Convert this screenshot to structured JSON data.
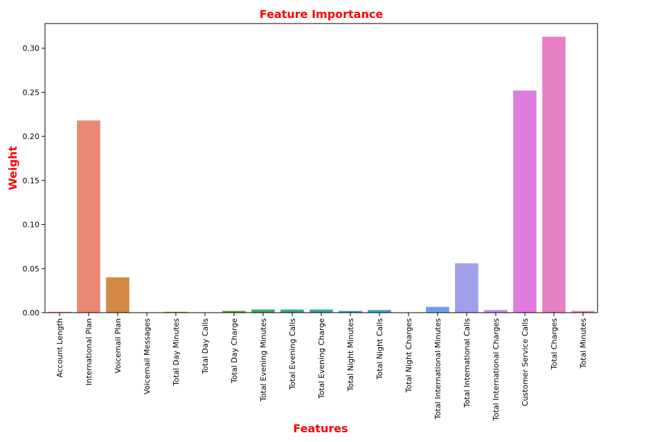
{
  "chart_data": {
    "type": "bar",
    "title": "Feature Importance",
    "xlabel": "Features",
    "ylabel": "Weight",
    "title_color": "#ff0000",
    "categories": [
      "Account Length",
      "International Plan",
      "Voicemail Plan",
      "Voicemail Messages",
      "Total Day Minutes",
      "Total Day Calls",
      "Total Day Charge",
      "Total Evening Minutes",
      "Total Evening Calls",
      "Total Evening Charge",
      "Total Night Minutes",
      "Total Night Calls",
      "Total Night Charges",
      "Total International Minutes",
      "Total International Calls",
      "Total International Charges",
      "Customer Service Calls",
      "Total Charges",
      "Total Minutes"
    ],
    "values": [
      0.001,
      0.218,
      0.04,
      0.0,
      0.001,
      0.0,
      0.002,
      0.0035,
      0.0035,
      0.0035,
      0.002,
      0.003,
      0.0,
      0.0065,
      0.056,
      0.003,
      0.252,
      0.313,
      0.002
    ],
    "colors": [
      "#e98fa0",
      "#e88875",
      "#d38a45",
      "#bd972f",
      "#a69a2f",
      "#8e9f2f",
      "#59a52e",
      "#33ab6a",
      "#35a98c",
      "#38a79f",
      "#38a5ae",
      "#3aa4c3",
      "#45a2dd",
      "#6f9fe8",
      "#a29fe9",
      "#c38de9",
      "#de7de0",
      "#e880c4",
      "#e88db0"
    ],
    "yticks": [
      "0.00",
      "0.05",
      "0.10",
      "0.15",
      "0.20",
      "0.25",
      "0.30"
    ],
    "ylim": [
      0,
      0.328
    ],
    "grid": false,
    "legend": "none"
  }
}
